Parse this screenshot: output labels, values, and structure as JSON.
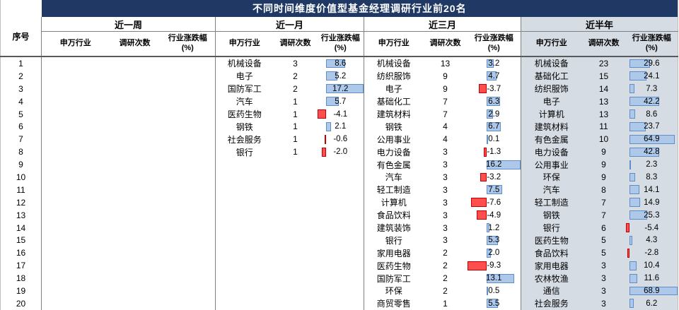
{
  "chart_data": {
    "type": "table",
    "title": "不同时间维度价值型基金经理调研行业前20名",
    "index_header": "序号",
    "sub_headers": {
      "industry": "申万行业",
      "count": "调研次数",
      "change": "行业涨跌幅\n(%)"
    },
    "groups": [
      {
        "label": "近一周",
        "shaded": false
      },
      {
        "label": "近一月",
        "shaded": false
      },
      {
        "label": "近三月",
        "shaded": false
      },
      {
        "label": "近半年",
        "shaded": true
      }
    ],
    "rows": [
      {
        "no": 1,
        "data": [
          null,
          {
            "industry": "机械设备",
            "count": 3,
            "change": 8.6
          },
          {
            "industry": "机械设备",
            "count": 13,
            "change": 3.2
          },
          {
            "industry": "机械设备",
            "count": 23,
            "change": 29.6
          }
        ]
      },
      {
        "no": 2,
        "data": [
          null,
          {
            "industry": "电子",
            "count": 2,
            "change": 5.2
          },
          {
            "industry": "纺织服饰",
            "count": 9,
            "change": 4.7
          },
          {
            "industry": "基础化工",
            "count": 15,
            "change": 24.1
          }
        ]
      },
      {
        "no": 3,
        "data": [
          null,
          {
            "industry": "国防军工",
            "count": 2,
            "change": 17.2
          },
          {
            "industry": "电子",
            "count": 9,
            "change": -3.7
          },
          {
            "industry": "纺织服饰",
            "count": 14,
            "change": 7.3
          }
        ]
      },
      {
        "no": 4,
        "data": [
          null,
          {
            "industry": "汽车",
            "count": 1,
            "change": 5.7
          },
          {
            "industry": "基础化工",
            "count": 7,
            "change": 6.3
          },
          {
            "industry": "电子",
            "count": 13,
            "change": 42.2
          }
        ]
      },
      {
        "no": 5,
        "data": [
          null,
          {
            "industry": "医药生物",
            "count": 1,
            "change": -4.1
          },
          {
            "industry": "建筑材料",
            "count": 7,
            "change": 2.9
          },
          {
            "industry": "计算机",
            "count": 13,
            "change": 8.6
          }
        ]
      },
      {
        "no": 6,
        "data": [
          null,
          {
            "industry": "钢铁",
            "count": 1,
            "change": 2.1
          },
          {
            "industry": "钢铁",
            "count": 4,
            "change": 6.7
          },
          {
            "industry": "建筑材料",
            "count": 11,
            "change": 23.7
          }
        ]
      },
      {
        "no": 7,
        "data": [
          null,
          {
            "industry": "社会服务",
            "count": 1,
            "change": -0.6
          },
          {
            "industry": "公用事业",
            "count": 4,
            "change": 0.1
          },
          {
            "industry": "有色金属",
            "count": 10,
            "change": 64.9
          }
        ]
      },
      {
        "no": 8,
        "data": [
          null,
          {
            "industry": "银行",
            "count": 1,
            "change": -2.0
          },
          {
            "industry": "电力设备",
            "count": 3,
            "change": -1.3
          },
          {
            "industry": "电力设备",
            "count": 9,
            "change": 42.8
          }
        ]
      },
      {
        "no": 9,
        "data": [
          null,
          null,
          {
            "industry": "有色金属",
            "count": 3,
            "change": 16.2
          },
          {
            "industry": "公用事业",
            "count": 9,
            "change": 2.3
          }
        ]
      },
      {
        "no": 10,
        "data": [
          null,
          null,
          {
            "industry": "汽车",
            "count": 3,
            "change": -3.2
          },
          {
            "industry": "环保",
            "count": 9,
            "change": 8.3
          }
        ]
      },
      {
        "no": 11,
        "data": [
          null,
          null,
          {
            "industry": "轻工制造",
            "count": 3,
            "change": 7.5
          },
          {
            "industry": "汽车",
            "count": 8,
            "change": 14.1
          }
        ]
      },
      {
        "no": 12,
        "data": [
          null,
          null,
          {
            "industry": "计算机",
            "count": 3,
            "change": -7.6
          },
          {
            "industry": "轻工制造",
            "count": 7,
            "change": 14.9
          }
        ]
      },
      {
        "no": 13,
        "data": [
          null,
          null,
          {
            "industry": "食品饮料",
            "count": 3,
            "change": -4.9
          },
          {
            "industry": "钢铁",
            "count": 7,
            "change": 25.3
          }
        ]
      },
      {
        "no": 14,
        "data": [
          null,
          null,
          {
            "industry": "建筑装饰",
            "count": 3,
            "change": 1.2
          },
          {
            "industry": "银行",
            "count": 6,
            "change": -5.4
          }
        ]
      },
      {
        "no": 15,
        "data": [
          null,
          null,
          {
            "industry": "银行",
            "count": 3,
            "change": 5.3
          },
          {
            "industry": "医药生物",
            "count": 5,
            "change": 4.3
          }
        ]
      },
      {
        "no": 16,
        "data": [
          null,
          null,
          {
            "industry": "家用电器",
            "count": 2,
            "change": 2.0
          },
          {
            "industry": "食品饮料",
            "count": 5,
            "change": -2.8
          }
        ]
      },
      {
        "no": 17,
        "data": [
          null,
          null,
          {
            "industry": "医药生物",
            "count": 2,
            "change": -9.3
          },
          {
            "industry": "家用电器",
            "count": 3,
            "change": 10.4
          }
        ]
      },
      {
        "no": 18,
        "data": [
          null,
          null,
          {
            "industry": "国防军工",
            "count": 2,
            "change": 13.1
          },
          {
            "industry": "农林牧渔",
            "count": 3,
            "change": 11.6
          }
        ]
      },
      {
        "no": 19,
        "data": [
          null,
          null,
          {
            "industry": "环保",
            "count": 2,
            "change": 0.5
          },
          {
            "industry": "通信",
            "count": 3,
            "change": 68.9
          }
        ]
      },
      {
        "no": 20,
        "data": [
          null,
          null,
          {
            "industry": "商贸零售",
            "count": 1,
            "change": 5.5
          },
          {
            "industry": "社会服务",
            "count": 3,
            "change": 6.2
          }
        ]
      }
    ]
  },
  "colors": {
    "title_bg": "#1F3864",
    "title_fg": "#FFFFFF",
    "shade": "#D6DCE4",
    "bar_positive": "#ADC8E8",
    "bar_positive_border": "#5E8FC9",
    "bar_negative": "#FF4E4E",
    "bar_negative_border": "#C00000",
    "grid": "#808080"
  }
}
